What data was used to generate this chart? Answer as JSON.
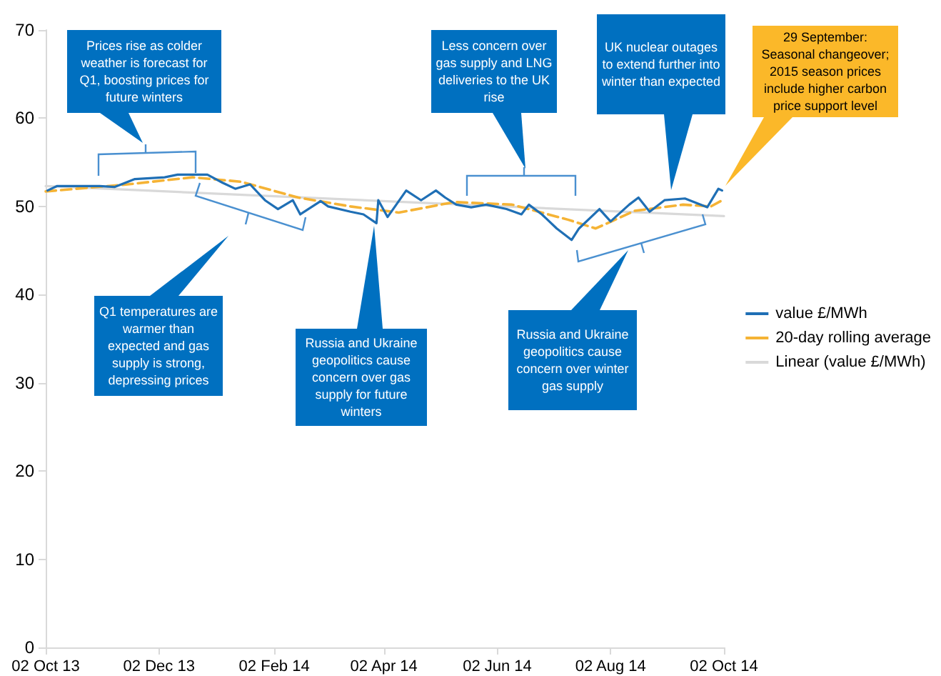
{
  "chart_data": {
    "type": "line",
    "x": [
      "2013-10-03",
      "2013-10-08",
      "2013-10-31",
      "2013-11-08",
      "2013-11-19",
      "2013-12-05",
      "2013-12-12",
      "2013-12-28",
      "2014-01-05",
      "2014-01-12",
      "2014-01-20",
      "2014-01-28",
      "2014-02-04",
      "2014-02-12",
      "2014-02-16",
      "2014-02-27",
      "2014-03-03",
      "2014-03-15",
      "2014-03-22",
      "2014-03-29",
      "2014-03-30",
      "2014-04-04",
      "2014-04-14",
      "2014-04-22",
      "2014-04-30",
      "2014-05-05",
      "2014-05-11",
      "2014-05-19",
      "2014-05-27",
      "2014-06-07",
      "2014-06-15",
      "2014-06-19",
      "2014-06-26",
      "2014-07-04",
      "2014-07-12",
      "2014-07-16",
      "2014-07-27",
      "2014-08-02",
      "2014-08-12",
      "2014-08-17",
      "2014-08-23",
      "2014-08-31",
      "2014-09-11",
      "2014-09-23",
      "2014-09-29",
      "2014-10-01"
    ],
    "series": [
      {
        "name": "value £/MWh",
        "color": "#1f6fb5",
        "line_style": "solid",
        "values": [
          51.8,
          52.3,
          52.3,
          52.2,
          53.1,
          53.3,
          53.6,
          53.6,
          52.7,
          52,
          52.5,
          50.7,
          49.7,
          50.7,
          49.1,
          50.6,
          50,
          49.4,
          49.1,
          48.1,
          50.7,
          48.8,
          51.8,
          50.7,
          51.8,
          51,
          50.2,
          49.9,
          50.2,
          49.7,
          49.1,
          50.2,
          49.1,
          47.5,
          46.2,
          47.5,
          49.7,
          48.3,
          50.2,
          51,
          49.4,
          50.7,
          50.9,
          49.9,
          52,
          51.8
        ]
      },
      {
        "name": "20-day rolling average",
        "color": "#f5b335",
        "line_style": "dashed",
        "x": [
          "2013-10-02",
          "2013-11-15",
          "2013-12-20",
          "2014-01-15",
          "2014-02-15",
          "2014-03-15",
          "2014-04-10",
          "2014-05-10",
          "2014-06-10",
          "2014-07-10",
          "2014-07-25",
          "2014-08-15",
          "2014-09-10",
          "2014-09-25",
          "2014-10-02"
        ],
        "values": [
          51.7,
          52.5,
          53.3,
          52.8,
          51,
          50,
          49.3,
          50.5,
          50.2,
          48.5,
          47.5,
          49.5,
          50.2,
          50,
          50.8
        ]
      },
      {
        "name": "Linear (value £/MWh)",
        "color": "#d9d9d9",
        "line_style": "solid",
        "x": [
          "2013-10-02",
          "2014-10-02"
        ],
        "values": [
          52.3,
          48.9
        ]
      }
    ],
    "xlim": [
      "2013-10-02",
      "2014-10-02"
    ],
    "xticks": [
      {
        "value": "2013-10-02",
        "label": "02 Oct 13"
      },
      {
        "value": "2013-12-02",
        "label": "02 Dec 13"
      },
      {
        "value": "2014-02-02",
        "label": "02 Feb 14"
      },
      {
        "value": "2014-04-02",
        "label": "02 Apr 14"
      },
      {
        "value": "2014-06-02",
        "label": "02 Jun 14"
      },
      {
        "value": "2014-08-02",
        "label": "02 Aug 14"
      },
      {
        "value": "2014-10-02",
        "label": "02 Oct 14"
      }
    ],
    "ylim": [
      0,
      70
    ],
    "yticks": [
      0,
      10,
      20,
      30,
      40,
      50,
      60,
      70
    ],
    "grid": false,
    "legend": "right",
    "marker": "none",
    "annotations": [
      "Prices rise as colder weather is forecast for Q1, boosting prices for future winters",
      "Q1 temperatures are warmer than expected and gas supply is strong, depressing prices",
      "Russia and Ukraine geopolitics cause concern over gas supply for future winters",
      "Less concern over gas supply and LNG deliveries to the UK rise",
      "UK nuclear outages to extend further into winter than expected",
      "Russia and Ukraine geopolitics cause concern over winter gas supply",
      "29 September: Seasonal changeover; 2015 season prices include higher carbon price support level"
    ]
  }
}
